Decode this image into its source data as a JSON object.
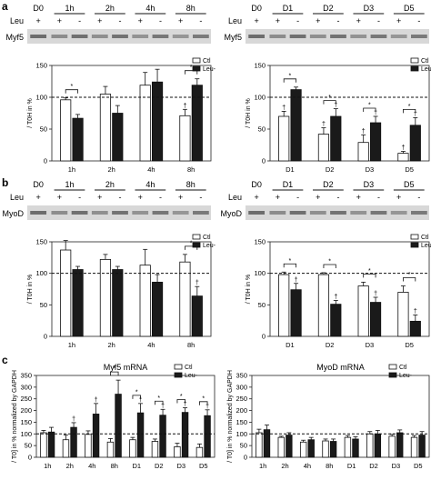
{
  "panels": {
    "a": "a",
    "b": "b",
    "c": "c"
  },
  "blots": {
    "a_left": {
      "protein": "Myf5",
      "row_label": "Leu",
      "groups": [
        "D0",
        "1h",
        "2h",
        "4h",
        "8h"
      ],
      "signs": [
        "+",
        "+",
        "-",
        "+",
        "-",
        "+",
        "-",
        "+",
        "-"
      ]
    },
    "a_right": {
      "protein": "Myf5",
      "row_label": "Leu",
      "groups": [
        "D0",
        "D1",
        "D2",
        "D3",
        "D5"
      ],
      "signs": [
        "+",
        "+",
        "-",
        "+",
        "-",
        "+",
        "-",
        "+",
        "-"
      ]
    },
    "b_left": {
      "protein": "MyoD",
      "row_label": "Leu",
      "groups": [
        "D0",
        "1h",
        "2h",
        "4h",
        "8h"
      ],
      "signs": [
        "+",
        "+",
        "-",
        "+",
        "-",
        "+",
        "-",
        "+",
        "-"
      ]
    },
    "b_right": {
      "protein": "MyoD",
      "row_label": "Leu",
      "groups": [
        "D0",
        "D1",
        "D2",
        "D3",
        "D5"
      ],
      "signs": [
        "+",
        "+",
        "-",
        "+",
        "-",
        "+",
        "-",
        "+",
        "-"
      ]
    }
  },
  "legend": {
    "ctl": "Ctl",
    "leu": "Leu-"
  },
  "chart_data": [
    {
      "id": "a_left",
      "type": "bar",
      "ylabel": "/ T0H in %",
      "ylim": [
        0,
        150
      ],
      "yticks": [
        0,
        50,
        100,
        150
      ],
      "baseline": 100,
      "categories": [
        "1h",
        "2h",
        "4h",
        "8h"
      ],
      "series": [
        {
          "name": "Ctl",
          "values": [
            96,
            105,
            119,
            71
          ],
          "errors": [
            3,
            12,
            20,
            10
          ]
        },
        {
          "name": "Leu-",
          "values": [
            67,
            75,
            124,
            119
          ],
          "errors": [
            6,
            12,
            20,
            10
          ]
        }
      ],
      "sig": [
        "*",
        "",
        "",
        "*"
      ],
      "dagger": [
        [
          false,
          false
        ],
        [
          false,
          false
        ],
        [
          false,
          false
        ],
        [
          true,
          false
        ]
      ]
    },
    {
      "id": "a_right",
      "type": "bar",
      "ylabel": "/ T0H in %",
      "ylim": [
        0,
        150
      ],
      "yticks": [
        0,
        50,
        100,
        150
      ],
      "baseline": 100,
      "categories": [
        "D1",
        "D2",
        "D3",
        "D5"
      ],
      "series": [
        {
          "name": "Ctl",
          "values": [
            70,
            42,
            29,
            12
          ],
          "errors": [
            8,
            10,
            12,
            3
          ]
        },
        {
          "name": "Leu-",
          "values": [
            112,
            70,
            60,
            56
          ],
          "errors": [
            4,
            12,
            10,
            12
          ]
        }
      ],
      "sig": [
        "*",
        "*",
        "*",
        "*"
      ],
      "dagger": [
        [
          true,
          false
        ],
        [
          true,
          true
        ],
        [
          true,
          true
        ],
        [
          true,
          true
        ]
      ]
    },
    {
      "id": "b_left",
      "type": "bar",
      "ylabel": "/ T0H in %",
      "ylim": [
        0,
        150
      ],
      "yticks": [
        0,
        50,
        100,
        150
      ],
      "baseline": 100,
      "categories": [
        "1h",
        "2h",
        "4h",
        "8h"
      ],
      "series": [
        {
          "name": "Ctl",
          "values": [
            137,
            122,
            113,
            118
          ],
          "errors": [
            15,
            8,
            25,
            12
          ]
        },
        {
          "name": "Leu-",
          "values": [
            106,
            106,
            86,
            64
          ],
          "errors": [
            5,
            5,
            12,
            15
          ]
        }
      ],
      "sig": [
        "",
        "",
        "",
        "*"
      ],
      "dagger": [
        [
          false,
          false
        ],
        [
          false,
          false
        ],
        [
          false,
          false
        ],
        [
          false,
          true
        ]
      ]
    },
    {
      "id": "b_right",
      "type": "bar",
      "ylabel": "/ T0H in %",
      "ylim": [
        0,
        150
      ],
      "yticks": [
        0,
        50,
        100,
        150
      ],
      "baseline": 100,
      "categories": [
        "D1",
        "D2",
        "D3",
        "D5"
      ],
      "series": [
        {
          "name": "Ctl",
          "values": [
            98,
            98,
            80,
            70
          ],
          "errors": [
            4,
            3,
            6,
            10
          ]
        },
        {
          "name": "Leu-",
          "values": [
            74,
            51,
            54,
            24
          ],
          "errors": [
            10,
            6,
            8,
            10
          ]
        }
      ],
      "sig": [
        "*",
        "*",
        "*",
        "*"
      ],
      "dagger": [
        [
          false,
          true
        ],
        [
          false,
          true
        ],
        [
          false,
          true
        ],
        [
          false,
          true
        ]
      ]
    },
    {
      "id": "c_left",
      "type": "bar",
      "title": "Myf5  mRNA",
      "ylabel": "/ T0] in % normalized by GAPDH",
      "ylim": [
        0,
        350
      ],
      "yticks": [
        0,
        50,
        100,
        150,
        200,
        250,
        300,
        350
      ],
      "baseline": 100,
      "categories": [
        "1h",
        "2h",
        "4h",
        "8h",
        "D1",
        "D2",
        "D3",
        "D5"
      ],
      "series": [
        {
          "name": "Ctl",
          "values": [
            105,
            75,
            98,
            65,
            75,
            68,
            45,
            42
          ],
          "errors": [
            10,
            20,
            15,
            15,
            10,
            10,
            15,
            15
          ]
        },
        {
          "name": "Leu-",
          "values": [
            108,
            128,
            185,
            270,
            190,
            180,
            192,
            178
          ],
          "errors": [
            20,
            20,
            45,
            60,
            40,
            25,
            20,
            25
          ]
        }
      ],
      "sig": [
        "",
        "",
        "",
        "*",
        "*",
        "*",
        "*",
        "*"
      ],
      "dagger": [
        [
          false,
          false
        ],
        [
          false,
          true
        ],
        [
          false,
          true
        ],
        [
          false,
          false
        ],
        [
          false,
          true
        ],
        [
          false,
          true
        ],
        [
          false,
          true
        ],
        [
          false,
          true
        ]
      ]
    },
    {
      "id": "c_right",
      "type": "bar",
      "title": "MyoD  mRNA",
      "ylabel": "/ T0] in % normalized by GAPDH",
      "ylim": [
        0,
        350
      ],
      "yticks": [
        0,
        50,
        100,
        150,
        200,
        250,
        300,
        350
      ],
      "baseline": 100,
      "categories": [
        "1h",
        "2h",
        "4h",
        "8h",
        "D1",
        "D2",
        "D3",
        "D5"
      ],
      "series": [
        {
          "name": "Ctl",
          "values": [
            105,
            85,
            65,
            70,
            85,
            100,
            90,
            85
          ],
          "errors": [
            15,
            5,
            8,
            8,
            8,
            10,
            8,
            8
          ]
        },
        {
          "name": "Leu-",
          "values": [
            118,
            95,
            75,
            68,
            78,
            100,
            105,
            95
          ],
          "errors": [
            20,
            10,
            10,
            10,
            10,
            15,
            12,
            15
          ]
        }
      ],
      "sig": [
        "",
        "",
        "",
        "",
        "",
        "",
        "",
        ""
      ],
      "dagger": [
        [
          false,
          false
        ],
        [
          false,
          false
        ],
        [
          false,
          false
        ],
        [
          false,
          false
        ],
        [
          false,
          false
        ],
        [
          false,
          false
        ],
        [
          false,
          false
        ],
        [
          false,
          false
        ]
      ]
    }
  ]
}
